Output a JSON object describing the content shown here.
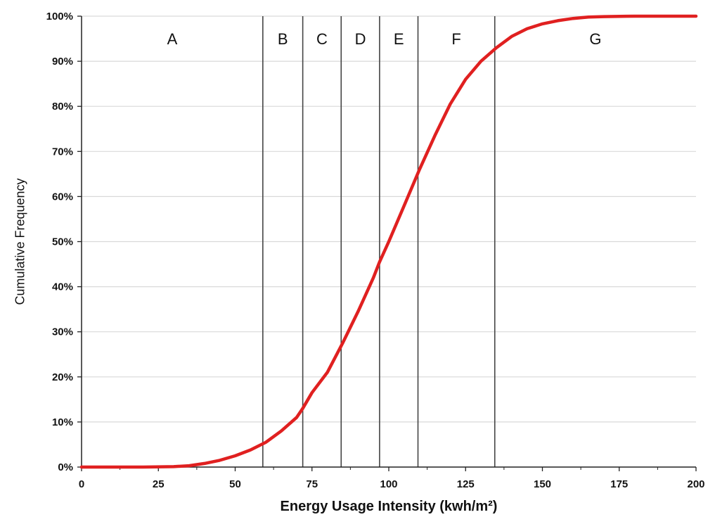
{
  "chart_data": {
    "type": "line",
    "title": "",
    "xlabel": "Energy Usage Intensity (kwh/m²)",
    "ylabel": "Cumulative Frequency",
    "xlim": [
      0,
      200
    ],
    "ylim": [
      0,
      100
    ],
    "x_ticks": [
      0,
      25,
      50,
      75,
      100,
      125,
      150,
      175,
      200
    ],
    "x_tick_labels": [
      "0",
      "25",
      "50",
      "75",
      "100",
      "125",
      "150",
      "175",
      "200"
    ],
    "y_ticks": [
      0,
      10,
      20,
      30,
      40,
      50,
      60,
      70,
      80,
      90,
      100
    ],
    "y_tick_labels": [
      "0%",
      "10%",
      "20%",
      "30%",
      "40%",
      "50%",
      "60%",
      "70%",
      "80%",
      "90%",
      "100%"
    ],
    "grid": "horizontal",
    "line_color": "#e02020",
    "series": [
      {
        "x": [
          0,
          10,
          20,
          30,
          35,
          40,
          45,
          50,
          55,
          60,
          65,
          70,
          72,
          75,
          80,
          85,
          90,
          95,
          97,
          100,
          105,
          110,
          115,
          120,
          125,
          130,
          135,
          140,
          145,
          150,
          155,
          160,
          165,
          170,
          180,
          190,
          200
        ],
        "y": [
          0,
          0,
          0,
          0.1,
          0.3,
          0.8,
          1.5,
          2.5,
          3.8,
          5.5,
          8.0,
          11.0,
          13.0,
          16.5,
          21.0,
          27.5,
          34.5,
          42.0,
          45.5,
          50.0,
          58.0,
          66.0,
          73.5,
          80.5,
          86.0,
          90.0,
          93.0,
          95.5,
          97.2,
          98.3,
          99.0,
          99.5,
          99.8,
          99.9,
          100,
          100,
          100
        ]
      }
    ],
    "zone_boundaries": [
      59,
      72,
      84.5,
      97,
      109.5,
      134.5
    ],
    "zones": [
      {
        "label": "A",
        "from": 0,
        "to": 59
      },
      {
        "label": "B",
        "from": 59,
        "to": 72
      },
      {
        "label": "C",
        "from": 72,
        "to": 84.5
      },
      {
        "label": "D",
        "from": 84.5,
        "to": 97
      },
      {
        "label": "E",
        "from": 97,
        "to": 109.5
      },
      {
        "label": "F",
        "from": 109.5,
        "to": 134.5
      },
      {
        "label": "G",
        "from": 134.5,
        "to": 200
      }
    ]
  }
}
